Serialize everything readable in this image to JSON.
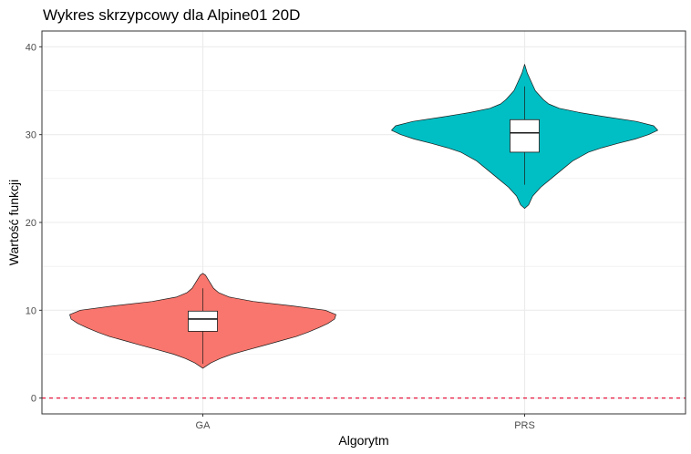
{
  "chart_data": {
    "type": "violin",
    "title": "Wykres skrzypcowy dla Alpine01 20D",
    "xlabel": "Algorytm",
    "ylabel": "Wartość funkcji",
    "categories": [
      "GA",
      "PRS"
    ],
    "ylim": [
      -1.8,
      41.8
    ],
    "yticks": [
      0,
      10,
      20,
      30,
      40
    ],
    "grid": true,
    "legend": "none",
    "reference_line": {
      "y": 0,
      "style": "dashed",
      "color": "#e8173d"
    },
    "series": [
      {
        "category": "GA",
        "color": "#F8766D",
        "min": 3.4,
        "max": 14.2,
        "box": {
          "lower_whisker": 3.9,
          "q1": 7.6,
          "median": 9.0,
          "q3": 9.9,
          "upper_whisker": 12.5
        },
        "density": [
          [
            3.4,
            0.0
          ],
          [
            4.0,
            0.06
          ],
          [
            4.5,
            0.13
          ],
          [
            5.0,
            0.22
          ],
          [
            5.5,
            0.34
          ],
          [
            6.0,
            0.46
          ],
          [
            6.5,
            0.58
          ],
          [
            7.0,
            0.7
          ],
          [
            7.5,
            0.79
          ],
          [
            8.0,
            0.87
          ],
          [
            8.5,
            0.94
          ],
          [
            9.0,
            0.99
          ],
          [
            9.5,
            1.0
          ],
          [
            10.0,
            0.92
          ],
          [
            10.5,
            0.67
          ],
          [
            11.0,
            0.38
          ],
          [
            11.5,
            0.2
          ],
          [
            12.0,
            0.12
          ],
          [
            12.5,
            0.08
          ],
          [
            13.0,
            0.06
          ],
          [
            13.5,
            0.04
          ],
          [
            14.0,
            0.02
          ],
          [
            14.2,
            0.0
          ]
        ]
      },
      {
        "category": "PRS",
        "color": "#00BFC4",
        "min": 21.6,
        "max": 38.0,
        "box": {
          "lower_whisker": 24.3,
          "q1": 28.0,
          "median": 30.2,
          "q3": 31.7,
          "upper_whisker": 35.5
        },
        "density": [
          [
            21.6,
            0.0
          ],
          [
            22.0,
            0.03
          ],
          [
            23.0,
            0.06
          ],
          [
            24.0,
            0.12
          ],
          [
            25.0,
            0.2
          ],
          [
            26.0,
            0.28
          ],
          [
            27.0,
            0.36
          ],
          [
            28.0,
            0.48
          ],
          [
            28.5,
            0.58
          ],
          [
            29.0,
            0.7
          ],
          [
            29.5,
            0.83
          ],
          [
            30.0,
            0.93
          ],
          [
            30.5,
            1.0
          ],
          [
            31.0,
            0.97
          ],
          [
            31.5,
            0.84
          ],
          [
            32.0,
            0.62
          ],
          [
            32.5,
            0.42
          ],
          [
            33.0,
            0.26
          ],
          [
            33.5,
            0.18
          ],
          [
            34.0,
            0.14
          ],
          [
            35.0,
            0.08
          ],
          [
            36.0,
            0.05
          ],
          [
            37.0,
            0.02
          ],
          [
            38.0,
            0.0
          ]
        ]
      }
    ]
  }
}
